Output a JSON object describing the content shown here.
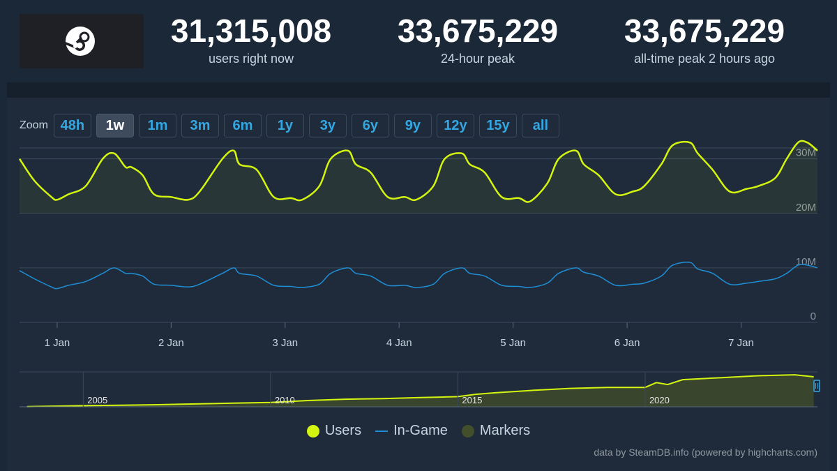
{
  "header": {
    "stats": [
      {
        "value": "31,315,008",
        "label": "users right now"
      },
      {
        "value": "33,675,229",
        "label": "24-hour peak"
      },
      {
        "value": "33,675,229",
        "label": "all-time peak 2 hours ago"
      }
    ]
  },
  "zoom": {
    "label": "Zoom",
    "options": [
      "48h",
      "1w",
      "1m",
      "3m",
      "6m",
      "1y",
      "3y",
      "6y",
      "9y",
      "12y",
      "15y",
      "all"
    ],
    "active": "1w"
  },
  "legend": {
    "users": "Users",
    "ingame": "In-Game",
    "markers": "Markers"
  },
  "credits": "data by SteamDB.info (powered by highcharts.com)",
  "colors": {
    "users": "#d3f50f",
    "ingame": "#1e8fd6",
    "markers": "#434f2a",
    "accent": "#34a7e2"
  },
  "chart_data": [
    {
      "type": "line",
      "x_labels": [
        "1 Jan",
        "2 Jan",
        "3 Jan",
        "4 Jan",
        "5 Jan",
        "6 Jan",
        "7 Jan"
      ],
      "x_range_days": [
        0.67,
        7.67
      ],
      "y_ticks": [
        "0",
        "10M",
        "20M",
        "30M"
      ],
      "ylim": [
        0,
        32
      ],
      "y_unit": "M",
      "grid": true,
      "legend_position": "bottom",
      "series": [
        {
          "name": "Users",
          "x": [
            0.67,
            0.8,
            0.95,
            1.0,
            1.1,
            1.25,
            1.4,
            1.5,
            1.6,
            1.65,
            1.75,
            1.85,
            2.0,
            2.15,
            2.25,
            2.45,
            2.55,
            2.6,
            2.75,
            2.9,
            3.05,
            3.15,
            3.3,
            3.4,
            3.55,
            3.62,
            3.75,
            3.9,
            4.05,
            4.15,
            4.3,
            4.4,
            4.55,
            4.62,
            4.75,
            4.9,
            5.05,
            5.15,
            5.3,
            5.4,
            5.55,
            5.62,
            5.75,
            5.9,
            6.05,
            6.15,
            6.3,
            6.4,
            6.55,
            6.62,
            6.75,
            6.9,
            7.05,
            7.15,
            7.3,
            7.4,
            7.5,
            7.58,
            7.67
          ],
          "y": [
            30,
            26,
            23,
            22.5,
            23.5,
            25,
            30,
            31,
            28.5,
            28.5,
            27,
            23.5,
            23,
            22.5,
            24,
            30,
            31.5,
            29,
            28,
            23,
            22.8,
            22.5,
            25,
            30,
            31.5,
            29,
            27.5,
            23,
            23,
            22.5,
            25,
            30,
            31,
            29,
            27.5,
            23,
            22.8,
            22.2,
            25.5,
            30,
            31.5,
            29,
            27,
            23.5,
            24,
            25,
            29,
            32.5,
            33,
            31,
            28,
            24,
            24.5,
            25,
            26.5,
            30,
            33,
            33,
            31.5
          ]
        },
        {
          "name": "In-Game",
          "x": [
            0.67,
            0.8,
            0.95,
            1.0,
            1.1,
            1.25,
            1.4,
            1.5,
            1.6,
            1.65,
            1.75,
            1.85,
            2.0,
            2.15,
            2.25,
            2.45,
            2.55,
            2.6,
            2.75,
            2.9,
            3.05,
            3.15,
            3.3,
            3.4,
            3.55,
            3.62,
            3.75,
            3.9,
            4.05,
            4.15,
            4.3,
            4.4,
            4.55,
            4.62,
            4.75,
            4.9,
            5.05,
            5.15,
            5.3,
            5.4,
            5.55,
            5.62,
            5.75,
            5.9,
            6.05,
            6.15,
            6.3,
            6.4,
            6.55,
            6.62,
            6.75,
            6.9,
            7.05,
            7.15,
            7.3,
            7.4,
            7.5,
            7.58,
            7.67
          ],
          "y": [
            9.5,
            8,
            6.5,
            6.2,
            6.8,
            7.5,
            9,
            10,
            9,
            9,
            8.5,
            7,
            6.8,
            6.5,
            7,
            9,
            10,
            9,
            8.5,
            6.8,
            6.6,
            6.4,
            7,
            9,
            10,
            9,
            8.5,
            6.8,
            6.8,
            6.4,
            7,
            9,
            10,
            9,
            8.5,
            6.8,
            6.6,
            6.4,
            7.2,
            9,
            10,
            9.2,
            8.5,
            6.8,
            7,
            7.2,
            8.5,
            10.5,
            11,
            9.8,
            9,
            7,
            7.2,
            7.5,
            8,
            9,
            10.5,
            10.5,
            10
          ]
        }
      ]
    },
    {
      "type": "area",
      "name": "navigator",
      "x_labels": [
        "2005",
        "2010",
        "2015",
        "2020"
      ],
      "x": [
        2003.5,
        2004,
        2004.5,
        2005,
        2006,
        2007,
        2008,
        2009,
        2010,
        2011,
        2012,
        2013,
        2014,
        2015,
        2015.5,
        2016,
        2017,
        2018,
        2019,
        2020,
        2020.3,
        2020.6,
        2021,
        2022,
        2023,
        2024,
        2024.5
      ],
      "y": [
        0.2,
        0.5,
        0.8,
        1.2,
        1.6,
        2.2,
        3,
        3.8,
        4.5,
        6.5,
        7.8,
        8.5,
        9.5,
        10.5,
        13,
        14.5,
        17,
        19,
        20,
        20,
        25,
        23,
        28,
        30,
        32,
        33,
        31
      ]
    }
  ]
}
